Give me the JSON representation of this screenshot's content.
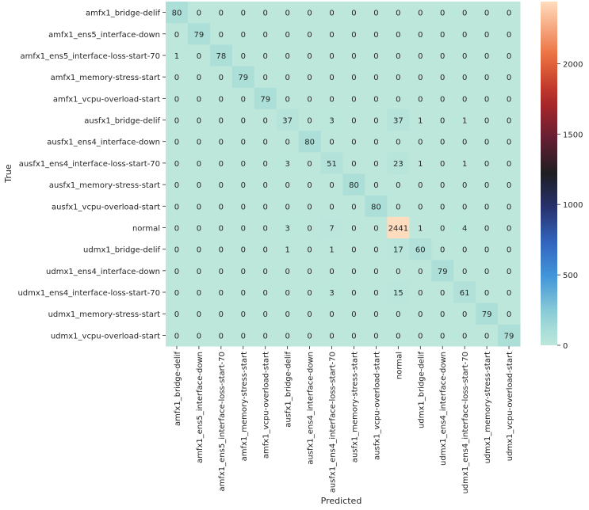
{
  "chart_data": {
    "type": "heatmap",
    "xlabel": "Predicted",
    "ylabel": "True",
    "labels": [
      "amfx1_bridge-delif",
      "amfx1_ens5_interface-down",
      "amfx1_ens5_interface-loss-start-70",
      "amfx1_memory-stress-start",
      "amfx1_vcpu-overload-start",
      "ausfx1_bridge-delif",
      "ausfx1_ens4_interface-down",
      "ausfx1_ens4_interface-loss-start-70",
      "ausfx1_memory-stress-start",
      "ausfx1_vcpu-overload-start",
      "normal",
      "udmx1_bridge-delif",
      "udmx1_ens4_interface-down",
      "udmx1_ens4_interface-loss-start-70",
      "udmx1_memory-stress-start",
      "udmx1_vcpu-overload-start"
    ],
    "matrix": [
      [
        80,
        0,
        0,
        0,
        0,
        0,
        0,
        0,
        0,
        0,
        0,
        0,
        0,
        0,
        0,
        0
      ],
      [
        0,
        79,
        0,
        0,
        0,
        0,
        0,
        0,
        0,
        0,
        0,
        0,
        0,
        0,
        0,
        0
      ],
      [
        1,
        0,
        78,
        0,
        0,
        0,
        0,
        0,
        0,
        0,
        0,
        0,
        0,
        0,
        0,
        0
      ],
      [
        0,
        0,
        0,
        79,
        0,
        0,
        0,
        0,
        0,
        0,
        0,
        0,
        0,
        0,
        0,
        0
      ],
      [
        0,
        0,
        0,
        0,
        79,
        0,
        0,
        0,
        0,
        0,
        0,
        0,
        0,
        0,
        0,
        0
      ],
      [
        0,
        0,
        0,
        0,
        0,
        37,
        0,
        3,
        0,
        0,
        37,
        1,
        0,
        1,
        0,
        0
      ],
      [
        0,
        0,
        0,
        0,
        0,
        0,
        80,
        0,
        0,
        0,
        0,
        0,
        0,
        0,
        0,
        0
      ],
      [
        0,
        0,
        0,
        0,
        0,
        3,
        0,
        51,
        0,
        0,
        23,
        1,
        0,
        1,
        0,
        0
      ],
      [
        0,
        0,
        0,
        0,
        0,
        0,
        0,
        0,
        80,
        0,
        0,
        0,
        0,
        0,
        0,
        0
      ],
      [
        0,
        0,
        0,
        0,
        0,
        0,
        0,
        0,
        0,
        80,
        0,
        0,
        0,
        0,
        0,
        0
      ],
      [
        0,
        0,
        0,
        0,
        0,
        3,
        0,
        7,
        0,
        0,
        2441,
        1,
        0,
        4,
        0,
        0
      ],
      [
        0,
        0,
        0,
        0,
        0,
        1,
        0,
        1,
        0,
        0,
        17,
        60,
        0,
        0,
        0,
        0
      ],
      [
        0,
        0,
        0,
        0,
        0,
        0,
        0,
        0,
        0,
        0,
        0,
        0,
        79,
        0,
        0,
        0
      ],
      [
        0,
        0,
        0,
        0,
        0,
        0,
        0,
        3,
        0,
        0,
        15,
        0,
        0,
        61,
        0,
        0
      ],
      [
        0,
        0,
        0,
        0,
        0,
        0,
        0,
        0,
        0,
        0,
        0,
        0,
        0,
        0,
        79,
        0
      ],
      [
        0,
        0,
        0,
        0,
        0,
        0,
        0,
        0,
        0,
        0,
        0,
        0,
        0,
        0,
        0,
        79
      ]
    ],
    "colorbar": {
      "colormap": "icefire",
      "vmin": 0,
      "vmax": 2441,
      "ticks": [
        0,
        500,
        1000,
        1500,
        2000
      ]
    },
    "grid": false
  }
}
